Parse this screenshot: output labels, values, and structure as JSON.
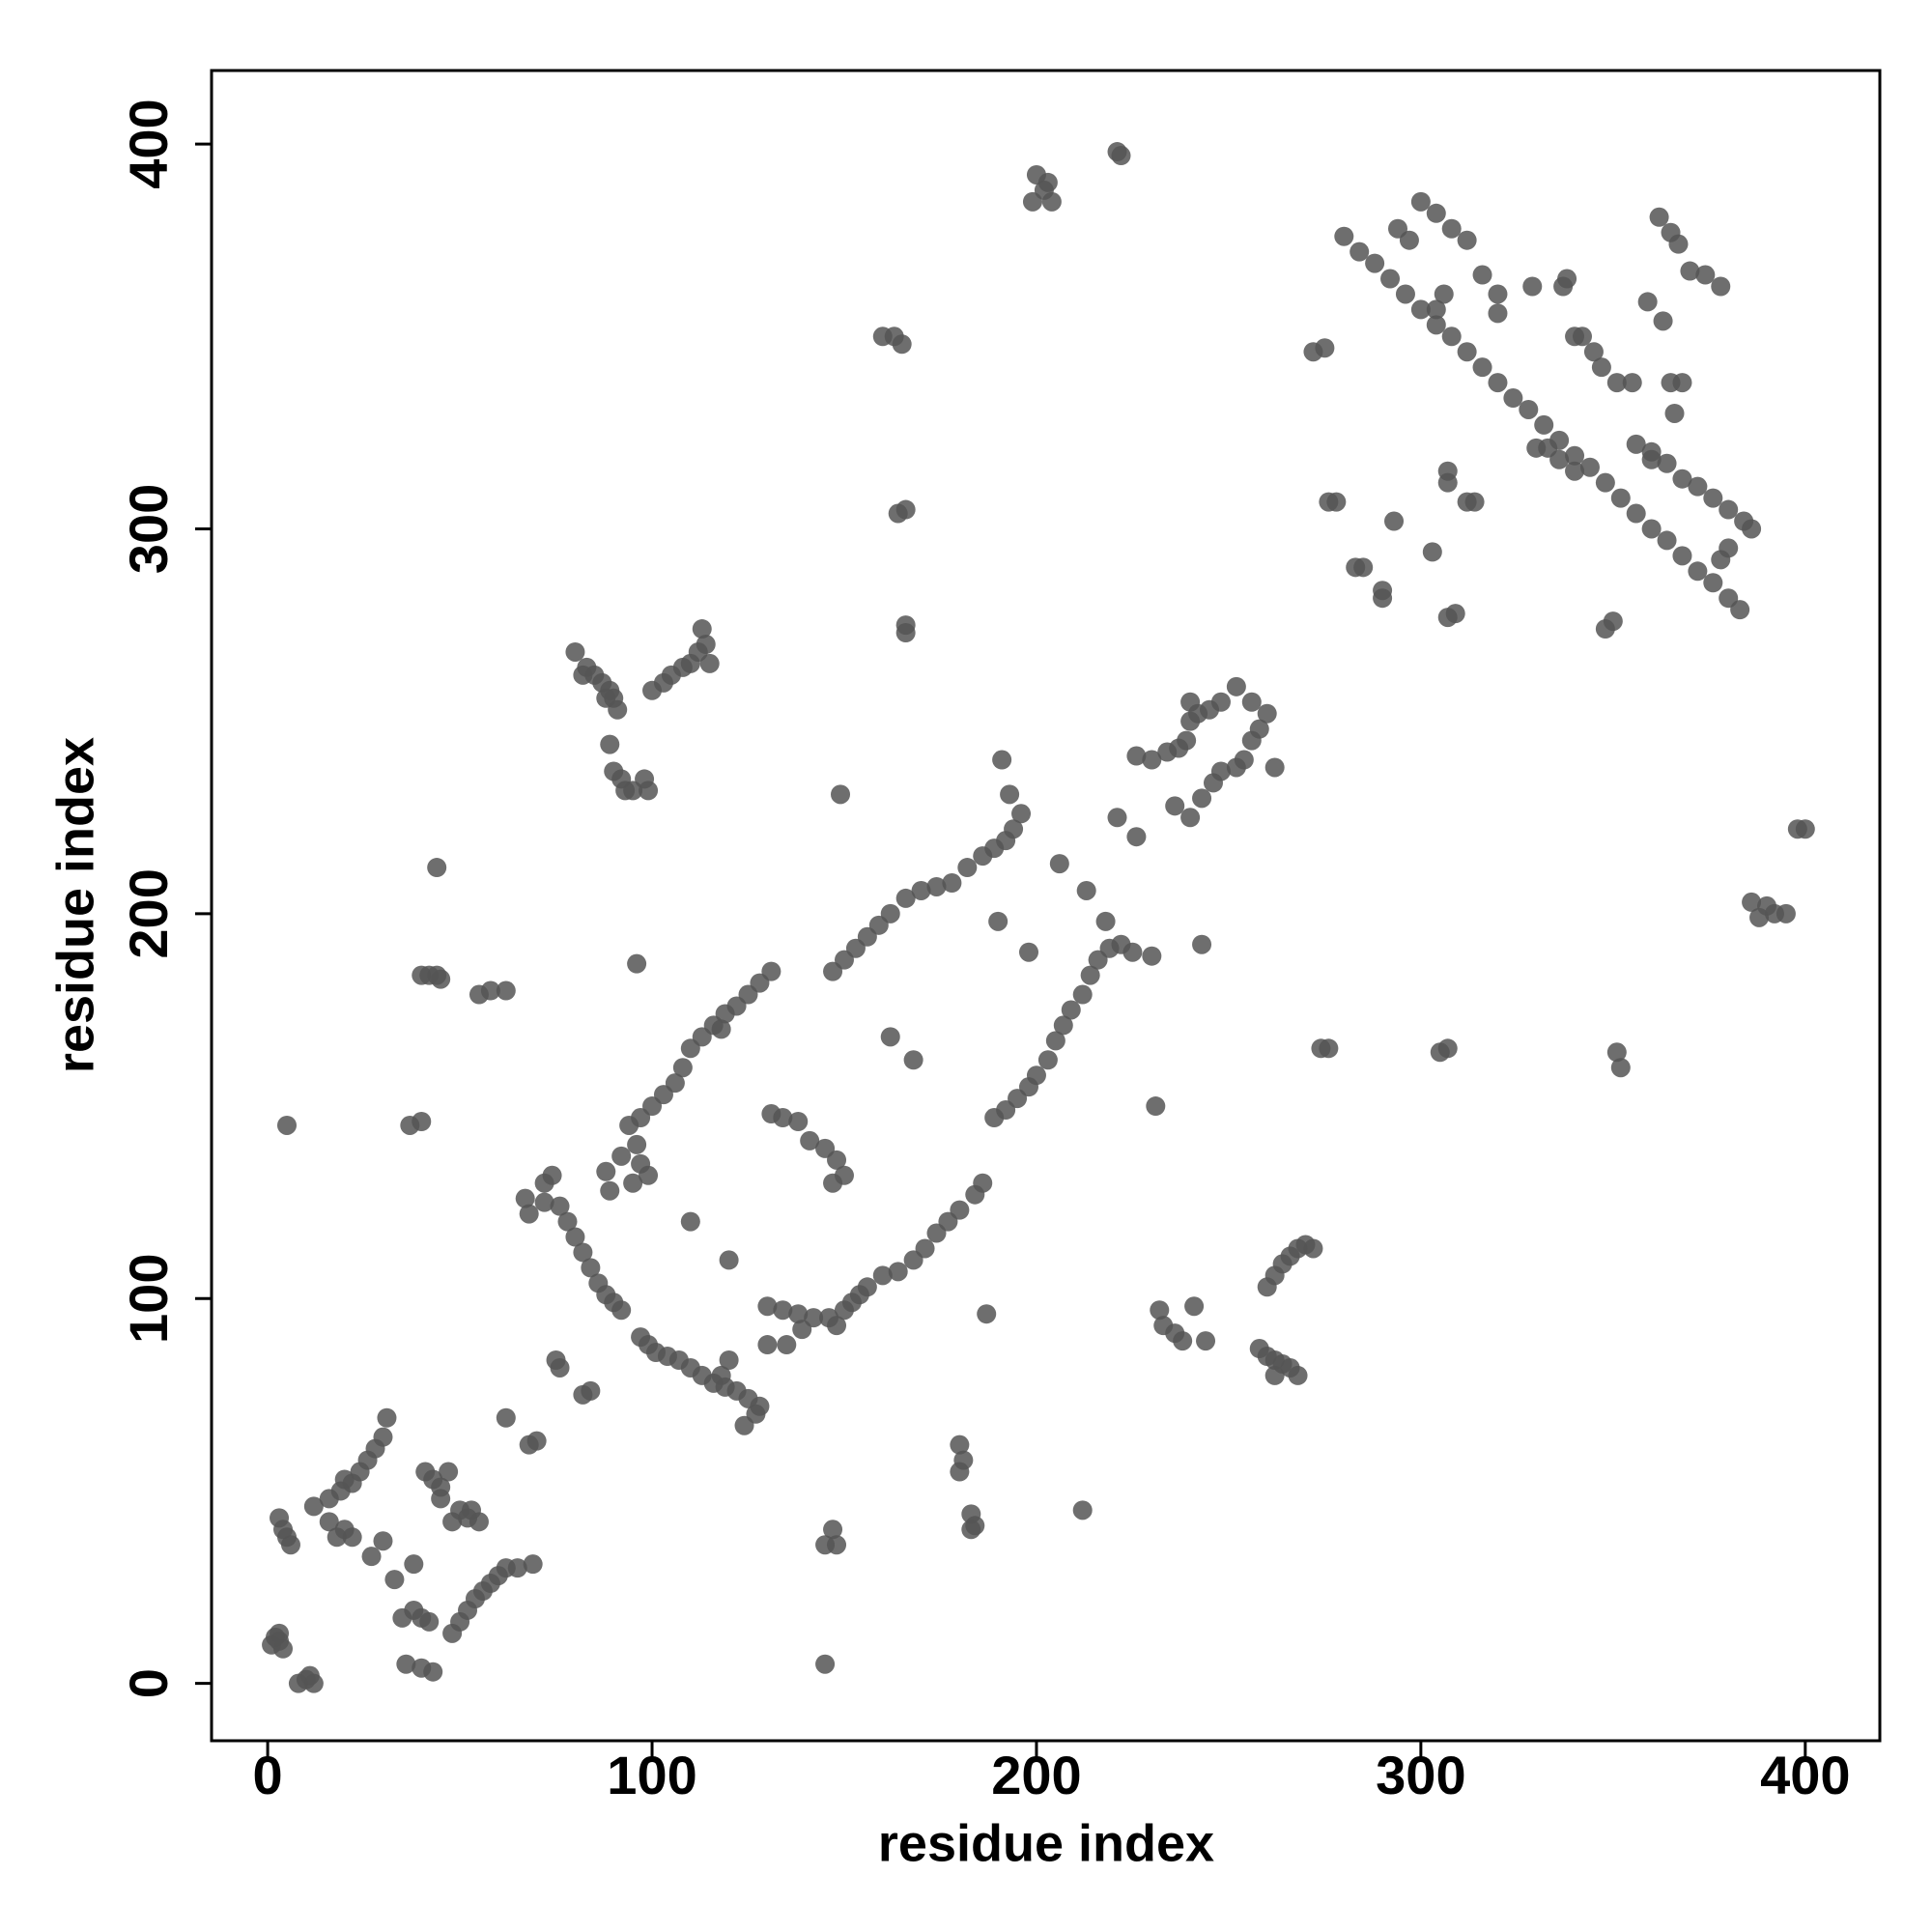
{
  "chart_data": {
    "type": "scatter",
    "xlabel": "residue index",
    "ylabel": "residue index",
    "color": "#555555",
    "xlim": [
      -14.6,
      419.4
    ],
    "ylim": [
      -14.9,
      419.1
    ],
    "xticks": [
      0,
      100,
      200,
      300,
      400
    ],
    "yticks": [
      0,
      100,
      200,
      300,
      400
    ],
    "x": [
      1,
      2,
      3,
      4,
      3,
      8,
      10,
      12,
      11,
      4,
      5,
      6,
      3,
      5,
      12,
      16,
      19,
      20,
      22,
      24,
      26,
      28,
      30,
      31,
      16,
      18,
      20,
      22,
      27,
      33,
      30,
      38,
      35,
      38,
      40,
      42,
      36,
      40,
      43,
      48,
      50,
      52,
      54,
      56,
      58,
      60,
      62,
      65,
      69,
      41,
      43,
      45,
      47,
      45,
      50,
      52,
      55,
      53,
      48,
      62,
      70,
      68,
      76,
      75,
      82,
      84,
      42,
      44,
      45,
      40,
      55,
      58,
      62,
      37,
      40,
      44,
      80,
      83,
      85,
      87,
      89,
      90,
      91,
      88,
      82,
      89,
      90,
      92,
      93,
      95,
      98,
      99,
      100,
      103,
      105,
      108,
      110,
      112,
      114,
      113,
      115,
      67,
      68,
      72,
      72,
      74,
      76,
      78,
      80,
      82,
      84,
      86,
      88,
      90,
      92,
      97,
      99,
      101,
      104,
      107,
      110,
      113,
      116,
      119,
      122,
      125,
      127,
      124,
      128,
      120,
      118,
      130,
      134,
      138,
      142,
      146,
      148,
      150,
      152,
      154,
      156,
      160,
      164,
      168,
      171,
      174,
      177,
      180,
      184,
      186,
      130,
      135,
      139,
      189,
      192,
      195,
      198,
      200,
      203,
      205,
      207,
      209,
      212,
      214,
      216,
      219,
      222,
      225,
      230,
      218,
      231,
      243,
      97,
      100,
      103,
      106,
      108,
      110,
      113,
      116,
      119,
      122,
      125,
      128,
      131,
      118,
      147,
      150,
      153,
      156,
      159,
      162,
      166,
      170,
      174,
      178,
      182,
      186,
      189,
      192,
      194,
      196,
      193,
      191,
      94,
      96,
      97,
      99,
      95,
      92,
      89,
      88,
      131,
      134,
      138,
      141,
      145,
      148,
      150,
      147,
      110,
      120,
      96,
      149,
      162,
      168,
      190,
      198,
      206,
      213,
      187,
      212,
      145,
      145,
      147,
      148,
      180,
      181,
      180,
      183,
      184,
      183,
      160,
      163,
      165,
      164,
      166,
      166,
      166,
      199,
      200,
      202,
      204,
      203,
      221,
      222,
      226,
      230,
      234,
      237,
      239,
      240,
      242,
      245,
      248,
      252,
      256,
      260,
      240,
      236,
      240,
      243,
      246,
      248,
      252,
      254,
      256,
      258,
      262,
      221,
      226,
      233,
      236,
      238,
      241,
      244,
      232,
      258,
      260,
      262,
      264,
      266,
      268,
      262,
      260,
      262,
      264,
      266,
      268,
      270,
      272,
      276,
      274,
      280,
      284,
      288,
      292,
      296,
      300,
      304,
      308,
      312,
      316,
      320,
      324,
      328,
      332,
      336,
      340,
      344,
      348,
      352,
      356,
      360,
      364,
      368,
      372,
      376,
      380,
      383,
      300,
      304,
      308,
      312,
      316,
      320,
      356,
      360,
      364,
      368,
      372,
      376,
      380,
      384,
      386,
      330,
      333,
      336,
      340,
      272,
      275,
      276,
      278,
      283,
      285,
      290,
      290,
      293,
      297,
      294,
      304,
      306,
      307,
      307,
      312,
      314,
      303,
      307,
      309,
      320,
      329,
      338,
      337,
      340,
      342,
      345,
      347,
      351,
      355,
      359,
      363,
      365,
      368,
      362,
      365,
      367,
      370,
      374,
      378,
      366,
      348,
      350,
      360,
      378,
      380,
      351,
      352,
      305,
      307,
      400,
      398,
      386,
      390,
      392,
      395,
      388
    ],
    "values": [
      10,
      12,
      11,
      9,
      13,
      0,
      1,
      0,
      2,
      40,
      38,
      36,
      43,
      145,
      46,
      48,
      50,
      53,
      52,
      55,
      58,
      61,
      64,
      69,
      42,
      38,
      40,
      38,
      33,
      27,
      37,
      31,
      17,
      19,
      17,
      16,
      5,
      4,
      3,
      13,
      16,
      19,
      22,
      24,
      26,
      28,
      30,
      30,
      31,
      55,
      53,
      51,
      55,
      48,
      45,
      43,
      42,
      45,
      42,
      69,
      63,
      62,
      82,
      84,
      75,
      76,
      184,
      184,
      183,
      184,
      179,
      180,
      180,
      145,
      146,
      212,
      268,
      264,
      262,
      260,
      258,
      256,
      253,
      256,
      262,
      244,
      237,
      235,
      232,
      232,
      235,
      232,
      258,
      260,
      262,
      264,
      265,
      268,
      270,
      274,
      265,
      126,
      122,
      125,
      130,
      132,
      124,
      120,
      116,
      112,
      108,
      104,
      101,
      99,
      97,
      90,
      88,
      86,
      85,
      84,
      82,
      80,
      78,
      77,
      76,
      74,
      70,
      67,
      72,
      84,
      80,
      98,
      97,
      96,
      95,
      95,
      93,
      97,
      99,
      101,
      103,
      106,
      107,
      110,
      113,
      117,
      120,
      123,
      127,
      130,
      88,
      88,
      92,
      147,
      149,
      152,
      155,
      158,
      162,
      167,
      171,
      175,
      179,
      184,
      188,
      191,
      192,
      190,
      189,
      198,
      150,
      192,
      147,
      150,
      153,
      156,
      160,
      165,
      168,
      171,
      174,
      176,
      179,
      182,
      185,
      170,
      185,
      188,
      191,
      194,
      197,
      200,
      204,
      206,
      207,
      208,
      212,
      215,
      217,
      219,
      222,
      226,
      231,
      240,
      145,
      140,
      135,
      132,
      130,
      137,
      128,
      133,
      148,
      147,
      146,
      141,
      139,
      136,
      132,
      130,
      120,
      110,
      187,
      231,
      168,
      162,
      198,
      190,
      213,
      206,
      96,
      45,
      5,
      36,
      40,
      36,
      62,
      58,
      55,
      44,
      41,
      40,
      350,
      350,
      348,
      304,
      305,
      275,
      273,
      385,
      392,
      388,
      385,
      390,
      398,
      397,
      241,
      240,
      242,
      243,
      245,
      250,
      252,
      253,
      255,
      259,
      255,
      252,
      255,
      228,
      225,
      230,
      234,
      237,
      238,
      240,
      245,
      248,
      238,
      225,
      220,
      93,
      91,
      89,
      98,
      89,
      97,
      87,
      85,
      84,
      83,
      82,
      80,
      80,
      103,
      106,
      109,
      111,
      113,
      114,
      113,
      165,
      165,
      376,
      372,
      369,
      365,
      361,
      357,
      353,
      350,
      346,
      342,
      338,
      334,
      331,
      327,
      323,
      319,
      316,
      312,
      308,
      304,
      300,
      297,
      293,
      289,
      286,
      282,
      279,
      385,
      382,
      378,
      375,
      366,
      361,
      322,
      320,
      317,
      313,
      311,
      308,
      305,
      302,
      300,
      321,
      321,
      318,
      315,
      346,
      347,
      307,
      307,
      290,
      290,
      284,
      282,
      302,
      375,
      378,
      357,
      361,
      315,
      312,
      307,
      307,
      294,
      277,
      278,
      356,
      363,
      365,
      363,
      350,
      350,
      346,
      342,
      338,
      338,
      359,
      354,
      338,
      338,
      381,
      377,
      374,
      367,
      366,
      363,
      330,
      274,
      276,
      318,
      292,
      295,
      164,
      160,
      164,
      165,
      222,
      222,
      203,
      202,
      200,
      200,
      199
    ]
  }
}
